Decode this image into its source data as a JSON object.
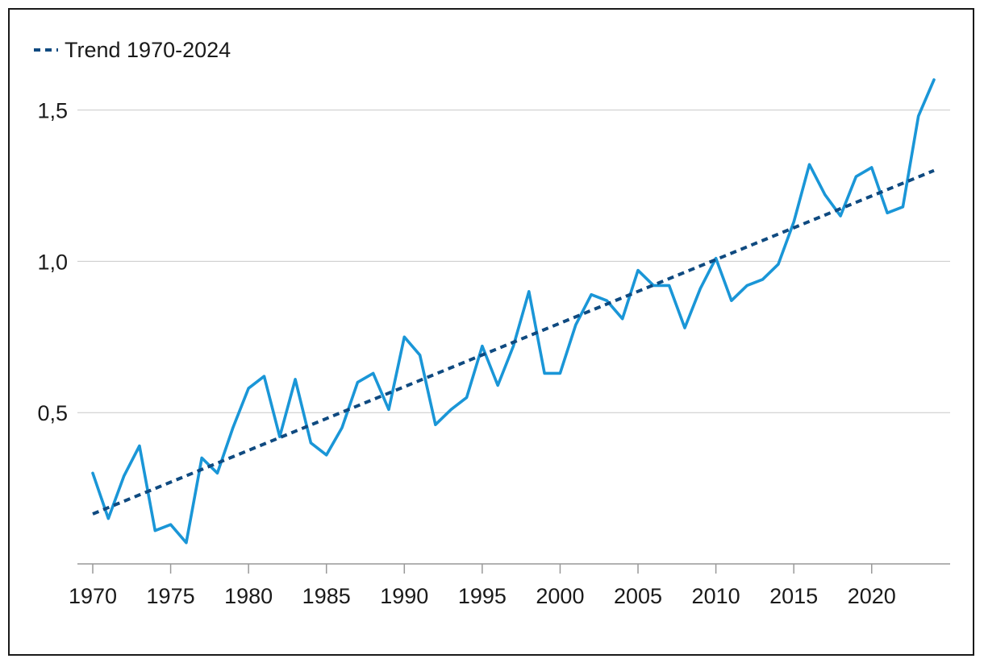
{
  "chart_data": {
    "type": "line",
    "x_start": 1970,
    "x_end": 2024,
    "xlim": [
      1970,
      2024
    ],
    "ylim": [
      0.0,
      1.6
    ],
    "grid": true,
    "legend_placement": "top-left",
    "x_tick_values": [
      1970,
      1975,
      1980,
      1985,
      1990,
      1995,
      2000,
      2005,
      2010,
      2015,
      2020
    ],
    "x_tick_labels": [
      "1970",
      "1975",
      "1980",
      "1985",
      "1990",
      "1995",
      "2000",
      "2005",
      "2010",
      "2015",
      "2020"
    ],
    "y_tick_values": [
      0.5,
      1.0,
      1.5
    ],
    "y_tick_labels": [
      "0,5",
      "1,0",
      "1,5"
    ],
    "series": [
      {
        "color": "#1a96d7",
        "x": [
          1970,
          1971,
          1972,
          1973,
          1974,
          1975,
          1976,
          1977,
          1978,
          1979,
          1980,
          1981,
          1982,
          1983,
          1984,
          1985,
          1986,
          1987,
          1988,
          1989,
          1990,
          1991,
          1992,
          1993,
          1994,
          1995,
          1996,
          1997,
          1998,
          1999,
          2000,
          2001,
          2002,
          2003,
          2004,
          2005,
          2006,
          2007,
          2008,
          2009,
          2010,
          2011,
          2012,
          2013,
          2014,
          2015,
          2016,
          2017,
          2018,
          2019,
          2020,
          2021,
          2022,
          2023,
          2024
        ],
        "values": [
          0.3,
          0.15,
          0.29,
          0.39,
          0.11,
          0.13,
          0.07,
          0.35,
          0.3,
          0.45,
          0.58,
          0.62,
          0.42,
          0.61,
          0.4,
          0.36,
          0.45,
          0.6,
          0.63,
          0.51,
          0.75,
          0.69,
          0.46,
          0.51,
          0.55,
          0.72,
          0.59,
          0.72,
          0.9,
          0.63,
          0.63,
          0.79,
          0.89,
          0.87,
          0.81,
          0.97,
          0.92,
          0.92,
          0.78,
          0.91,
          1.01,
          0.87,
          0.92,
          0.94,
          0.99,
          1.13,
          1.32,
          1.22,
          1.15,
          1.28,
          1.31,
          1.16,
          1.18,
          1.48,
          1.6
        ]
      },
      {
        "name": "Trend 1970-2024",
        "color": "#0f4a80",
        "dashed": true,
        "x": [
          1970,
          2024
        ],
        "values": [
          0.165,
          1.3
        ]
      }
    ],
    "legend": [
      {
        "label": "Trend 1970-2024",
        "series_index": 1
      }
    ]
  }
}
